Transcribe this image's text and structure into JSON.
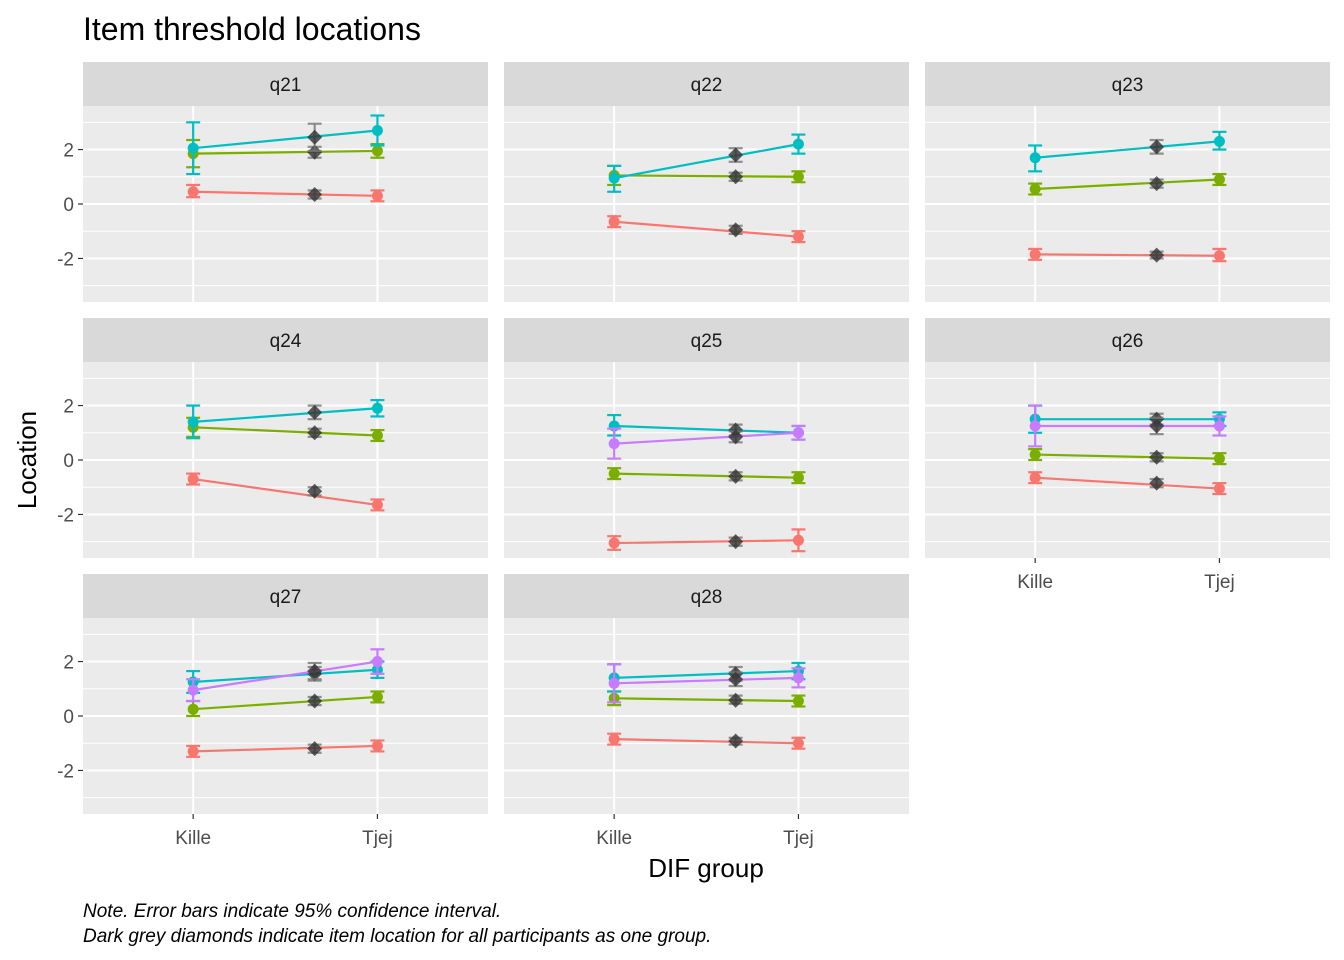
{
  "title": "Item threshold locations",
  "notes": [
    "Note. Error bars indicate 95% confidence interval.",
    "Dark grey diamonds indicate item location for all participants as one group."
  ],
  "colors": {
    "panel_bg": "#ebebeb",
    "strip_bg": "#d9d9d9",
    "grid": "#ffffff",
    "threshold": [
      "#f8766d",
      "#7cae00",
      "#00bfc4",
      "#c77cff"
    ],
    "diamond": "#333333"
  },
  "chart_data": {
    "type": "line",
    "facet_var": "item",
    "layout": "3 columns x 3 rows",
    "xlabel": "DIF group",
    "ylabel": "Location",
    "x_categories": [
      "Kille",
      "Tjej"
    ],
    "y_ticks": [
      -2,
      0,
      2
    ],
    "ylim": [
      -3.6,
      3.6
    ],
    "grid": true,
    "error_bars": "95% confidence interval",
    "panels": [
      {
        "label": "q21",
        "thresholds": [
          {
            "kille": 0.45,
            "kille_ci": [
              0.25,
              0.7
            ],
            "tjej": 0.3,
            "tjej_ci": [
              0.1,
              0.5
            ],
            "all": 0.35,
            "all_ci": [
              0.2,
              0.5
            ]
          },
          {
            "kille": 1.85,
            "kille_ci": [
              1.35,
              2.35
            ],
            "tjej": 1.95,
            "tjej_ci": [
              1.7,
              2.2
            ],
            "all": 1.9,
            "all_ci": [
              1.7,
              2.1
            ]
          },
          {
            "kille": 2.05,
            "kille_ci": [
              1.1,
              3.0
            ],
            "tjej": 2.7,
            "tjej_ci": [
              2.15,
              3.25
            ],
            "all": 2.45,
            "all_ci": [
              1.95,
              2.95
            ]
          }
        ]
      },
      {
        "label": "q22",
        "thresholds": [
          {
            "kille": -0.65,
            "kille_ci": [
              -0.85,
              -0.45
            ],
            "tjej": -1.2,
            "tjej_ci": [
              -1.4,
              -1.0
            ],
            "all": -0.95,
            "all_ci": [
              -1.1,
              -0.8
            ]
          },
          {
            "kille": 1.05,
            "kille_ci": [
              0.7,
              1.4
            ],
            "tjej": 1.0,
            "tjej_ci": [
              0.8,
              1.2
            ],
            "all": 1.0,
            "all_ci": [
              0.85,
              1.15
            ]
          },
          {
            "kille": 0.95,
            "kille_ci": [
              0.45,
              1.4
            ],
            "tjej": 2.2,
            "tjej_ci": [
              1.85,
              2.55
            ],
            "all": 1.8,
            "all_ci": [
              1.55,
              2.05
            ]
          }
        ]
      },
      {
        "label": "q23",
        "thresholds": [
          {
            "kille": -1.85,
            "kille_ci": [
              -2.05,
              -1.65
            ],
            "tjej": -1.9,
            "tjej_ci": [
              -2.1,
              -1.65
            ],
            "all": -1.88,
            "all_ci": [
              -2.0,
              -1.75
            ]
          },
          {
            "kille": 0.55,
            "kille_ci": [
              0.35,
              0.75
            ],
            "tjej": 0.9,
            "tjej_ci": [
              0.7,
              1.1
            ],
            "all": 0.75,
            "all_ci": [
              0.6,
              0.9
            ]
          },
          {
            "kille": 1.7,
            "kille_ci": [
              1.2,
              2.15
            ],
            "tjej": 2.3,
            "tjej_ci": [
              2.0,
              2.65
            ],
            "all": 2.1,
            "all_ci": [
              1.85,
              2.35
            ]
          }
        ]
      },
      {
        "label": "q24",
        "thresholds": [
          {
            "kille": -0.7,
            "kille_ci": [
              -0.9,
              -0.5
            ],
            "tjej": -1.65,
            "tjej_ci": [
              -1.85,
              -1.45
            ],
            "all": -1.15,
            "all_ci": [
              -1.3,
              -1.0
            ]
          },
          {
            "kille": 1.2,
            "kille_ci": [
              0.85,
              1.55
            ],
            "tjej": 0.9,
            "tjej_ci": [
              0.7,
              1.1
            ],
            "all": 1.0,
            "all_ci": [
              0.85,
              1.15
            ]
          },
          {
            "kille": 1.4,
            "kille_ci": [
              0.8,
              2.0
            ],
            "tjej": 1.9,
            "tjej_ci": [
              1.6,
              2.2
            ],
            "all": 1.75,
            "all_ci": [
              1.5,
              2.0
            ]
          }
        ]
      },
      {
        "label": "q25",
        "thresholds": [
          {
            "kille": -3.05,
            "kille_ci": [
              -3.3,
              -2.8
            ],
            "tjej": -2.95,
            "tjej_ci": [
              -3.35,
              -2.55
            ],
            "all": -3.0,
            "all_ci": [
              -3.15,
              -2.85
            ]
          },
          {
            "kille": -0.5,
            "kille_ci": [
              -0.7,
              -0.3
            ],
            "tjej": -0.65,
            "tjej_ci": [
              -0.85,
              -0.45
            ],
            "all": -0.6,
            "all_ci": [
              -0.75,
              -0.45
            ]
          },
          {
            "kille": 1.25,
            "kille_ci": [
              0.9,
              1.65
            ],
            "tjej": 1.0,
            "tjej_ci": [
              0.75,
              1.25
            ],
            "all": 1.1,
            "all_ci": [
              0.9,
              1.3
            ]
          },
          {
            "kille": 0.6,
            "kille_ci": [
              0.05,
              1.15
            ],
            "tjej": 1.0,
            "tjej_ci": [
              0.75,
              1.25
            ],
            "all": 0.85,
            "all_ci": [
              0.65,
              1.05
            ]
          }
        ]
      },
      {
        "label": "q26",
        "thresholds": [
          {
            "kille": -0.65,
            "kille_ci": [
              -0.85,
              -0.45
            ],
            "tjej": -1.05,
            "tjej_ci": [
              -1.25,
              -0.85
            ],
            "all": -0.85,
            "all_ci": [
              -1.0,
              -0.7
            ]
          },
          {
            "kille": 0.2,
            "kille_ci": [
              0.0,
              0.4
            ],
            "tjej": 0.05,
            "tjej_ci": [
              -0.15,
              0.25
            ],
            "all": 0.1,
            "all_ci": [
              -0.05,
              0.25
            ]
          },
          {
            "kille": 1.5,
            "kille_ci": [
              1.0,
              2.0
            ],
            "tjej": 1.5,
            "tjej_ci": [
              1.25,
              1.75
            ],
            "all": 1.5,
            "all_ci": [
              1.3,
              1.7
            ]
          },
          {
            "kille": 1.25,
            "kille_ci": [
              0.5,
              2.0
            ],
            "tjej": 1.25,
            "tjej_ci": [
              0.9,
              1.6
            ],
            "all": 1.25,
            "all_ci": [
              0.95,
              1.55
            ]
          }
        ]
      },
      {
        "label": "q27",
        "thresholds": [
          {
            "kille": -1.3,
            "kille_ci": [
              -1.5,
              -1.1
            ],
            "tjej": -1.1,
            "tjej_ci": [
              -1.3,
              -0.9
            ],
            "all": -1.2,
            "all_ci": [
              -1.35,
              -1.05
            ]
          },
          {
            "kille": 0.25,
            "kille_ci": [
              0.0,
              0.55
            ],
            "tjej": 0.7,
            "tjej_ci": [
              0.5,
              0.9
            ],
            "all": 0.55,
            "all_ci": [
              0.4,
              0.7
            ]
          },
          {
            "kille": 1.25,
            "kille_ci": [
              0.85,
              1.65
            ],
            "tjej": 1.7,
            "tjej_ci": [
              1.4,
              2.0
            ],
            "all": 1.55,
            "all_ci": [
              1.3,
              1.8
            ]
          },
          {
            "kille": 0.95,
            "kille_ci": [
              0.55,
              1.35
            ],
            "tjej": 2.0,
            "tjej_ci": [
              1.55,
              2.45
            ],
            "all": 1.65,
            "all_ci": [
              1.35,
              1.95
            ]
          }
        ]
      },
      {
        "label": "q28",
        "thresholds": [
          {
            "kille": -0.85,
            "kille_ci": [
              -1.05,
              -0.65
            ],
            "tjej": -1.0,
            "tjej_ci": [
              -1.2,
              -0.8
            ],
            "all": -0.92,
            "all_ci": [
              -1.05,
              -0.8
            ]
          },
          {
            "kille": 0.65,
            "kille_ci": [
              0.4,
              0.9
            ],
            "tjej": 0.55,
            "tjej_ci": [
              0.35,
              0.75
            ],
            "all": 0.58,
            "all_ci": [
              0.45,
              0.75
            ]
          },
          {
            "kille": 1.4,
            "kille_ci": [
              0.9,
              1.9
            ],
            "tjej": 1.65,
            "tjej_ci": [
              1.35,
              1.95
            ],
            "all": 1.55,
            "all_ci": [
              1.3,
              1.8
            ]
          },
          {
            "kille": 1.2,
            "kille_ci": [
              0.5,
              1.9
            ],
            "tjej": 1.4,
            "tjej_ci": [
              1.05,
              1.75
            ],
            "all": 1.35,
            "all_ci": [
              1.1,
              1.6
            ]
          }
        ]
      }
    ]
  }
}
